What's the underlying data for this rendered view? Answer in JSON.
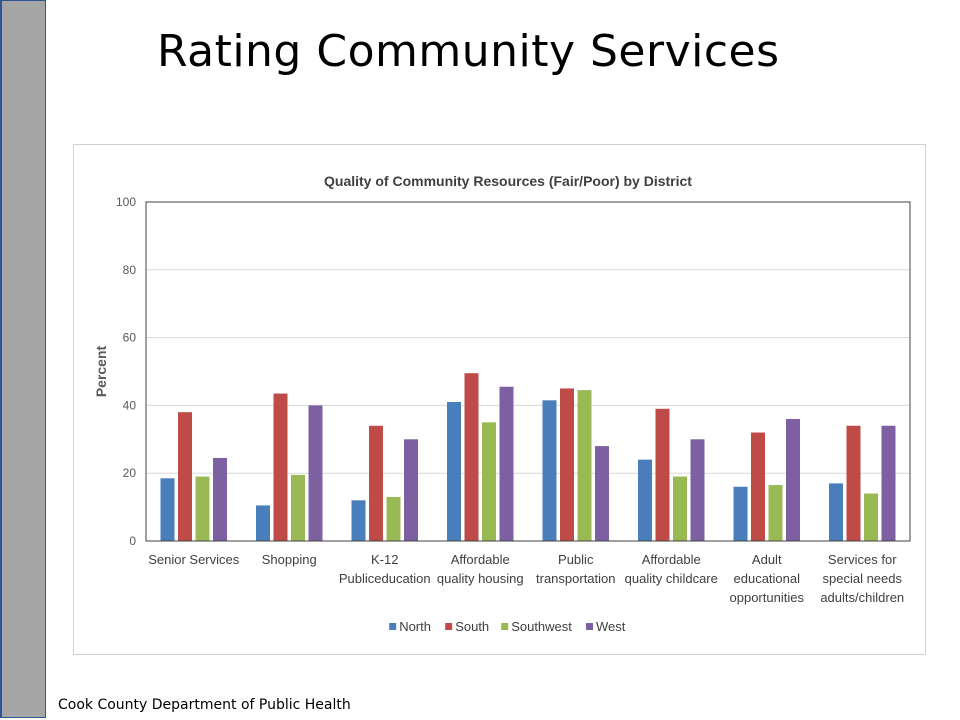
{
  "slide": {
    "title": "Rating Community Services",
    "footer": "Cook County Department of Public Health"
  },
  "colors": {
    "sidebar": "#a6a6a6",
    "sidebar_border": "#2f5597"
  },
  "chart_data": {
    "type": "bar",
    "title": "Quality of Community Resources (Fair/Poor) by District",
    "xlabel": "",
    "ylabel": "Percent",
    "ylim": [
      0,
      100
    ],
    "yticks": [
      0,
      20,
      40,
      60,
      80,
      100
    ],
    "grid": true,
    "legend": "bottom",
    "categories": [
      [
        "Senior Services"
      ],
      [
        "Shopping"
      ],
      [
        "K-12",
        "Publiceducation"
      ],
      [
        "Affordable",
        "quality housing"
      ],
      [
        "Public",
        "transportation"
      ],
      [
        "Affordable",
        "quality childcare"
      ],
      [
        "Adult",
        "educational",
        "opportunities"
      ],
      [
        "Services for",
        "special needs",
        "adults/children"
      ]
    ],
    "series": [
      {
        "name": "North",
        "color": "#4a7ebb",
        "values": [
          18.5,
          10.5,
          12,
          41,
          41.5,
          24,
          16,
          17
        ]
      },
      {
        "name": "South",
        "color": "#be4b48",
        "values": [
          38,
          43.5,
          34,
          49.5,
          45,
          39,
          32,
          34
        ]
      },
      {
        "name": "Southwest",
        "color": "#98b954",
        "values": [
          19,
          19.5,
          13,
          35,
          44.5,
          19,
          16.5,
          14
        ]
      },
      {
        "name": "West",
        "color": "#7d60a0",
        "values": [
          24.5,
          40,
          30,
          45.5,
          28,
          30,
          36,
          34
        ]
      }
    ]
  }
}
